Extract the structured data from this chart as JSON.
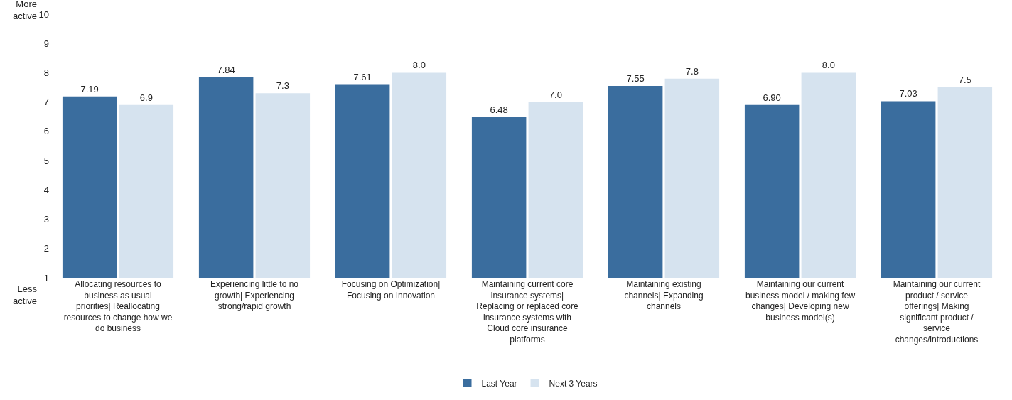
{
  "chart_data": {
    "type": "bar",
    "categories": [
      "Allocating resources to business as usual priorities| Reallocating resources to change how we do business",
      "Experiencing little to no growth| Experiencing strong/rapid growth",
      "Focusing on Optimization| Focusing on Innovation",
      "Maintaining current core insurance systems| Replacing or replaced core insurance systems with Cloud core insurance platforms",
      "Maintaining existing channels| Expanding channels",
      "Maintaining our current business model / making few changes| Developing new business model(s)",
      "Maintaining our current product / service offerings| Making significant product / service changes/introductions"
    ],
    "series": [
      {
        "name": "Last Year",
        "color": "#3a6d9e",
        "values": [
          7.19,
          7.84,
          7.61,
          6.48,
          7.55,
          6.9,
          7.03
        ],
        "value_labels": [
          "7.19",
          "7.84",
          "7.61",
          "6.48",
          "7.55",
          "6.90",
          "7.03"
        ]
      },
      {
        "name": "Next 3 Years",
        "color": "#d6e3ef",
        "values": [
          6.9,
          7.3,
          8.0,
          7.0,
          7.8,
          8.0,
          7.5
        ],
        "value_labels": [
          "6.9",
          "7.3",
          "8.0",
          "7.0",
          "7.8",
          "8.0",
          "7.5"
        ]
      }
    ],
    "ylim": [
      1,
      10
    ],
    "yticks": [
      1,
      2,
      3,
      4,
      5,
      6,
      7,
      8,
      9,
      10
    ],
    "annotations": [
      "More active",
      "Less active"
    ],
    "grid": false,
    "legend": "bottom"
  }
}
